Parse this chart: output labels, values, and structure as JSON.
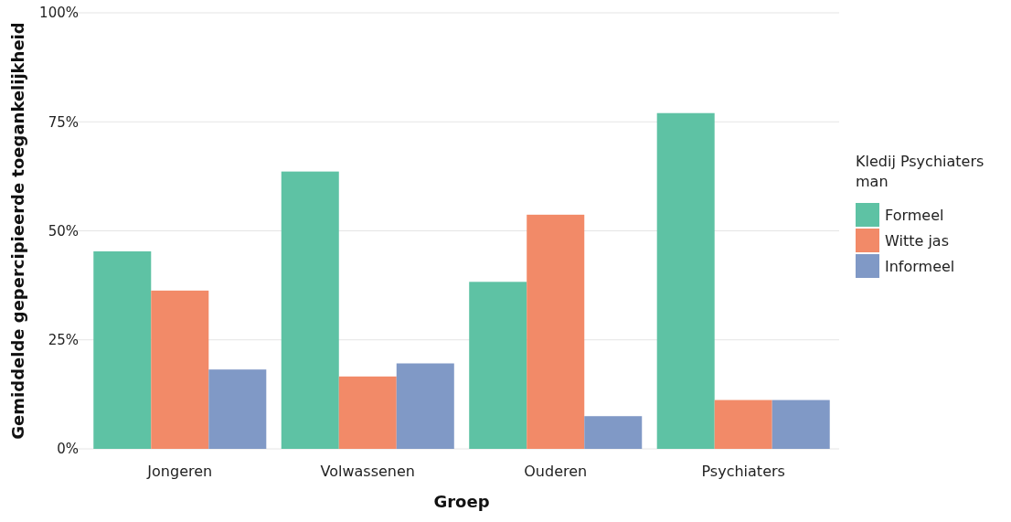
{
  "chart_data": {
    "type": "bar",
    "xlabel": "Groep",
    "ylabel": "Gemiddelde gepercipieerde toegankelijkheid",
    "legend_title": "Kledij Psychiaters man",
    "categories": [
      "Jongeren",
      "Volwassenen",
      "Ouderen",
      "Psychiaters"
    ],
    "series": [
      {
        "name": "Formeel",
        "color": "#5ec2a4",
        "values": [
          45.3,
          63.6,
          38.3,
          77.0
        ]
      },
      {
        "name": "Witte jas",
        "color": "#f28a68",
        "values": [
          36.3,
          16.6,
          53.7,
          11.2
        ]
      },
      {
        "name": "Informeel",
        "color": "#8099c6",
        "values": [
          18.2,
          19.6,
          7.5,
          11.2
        ]
      }
    ],
    "ylim": [
      0,
      100
    ],
    "yticks": [
      {
        "value": 0,
        "label": "0%"
      },
      {
        "value": 25,
        "label": "25%"
      },
      {
        "value": 50,
        "label": "50%"
      },
      {
        "value": 75,
        "label": "75%"
      },
      {
        "value": 100,
        "label": "100%"
      }
    ],
    "grid": "y",
    "legend": "right"
  }
}
